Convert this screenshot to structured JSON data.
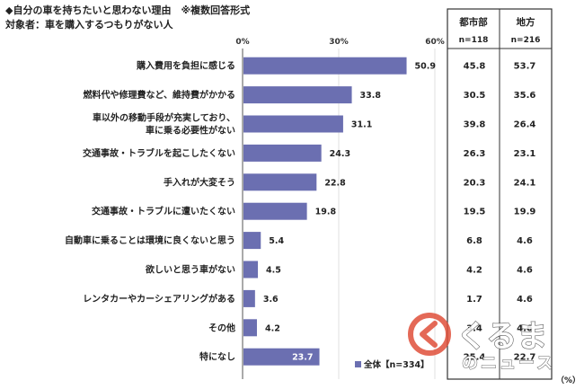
{
  "title": "◆自分の車を持ちたいと思わない理由　※複数回答形式",
  "subtitle": "対象者：車を購入するつもりがない人",
  "colors": {
    "bar": "#6b6fb1",
    "grid": "#d8d8d8",
    "border": "#333333"
  },
  "legend": {
    "label": "全体【n=334】"
  },
  "unit": "（%）",
  "columns": [
    {
      "name": "都市部",
      "n": "n=118"
    },
    {
      "name": "地方",
      "n": "n=216"
    }
  ],
  "watermark": {
    "logo": "くるまのニュース",
    "icon": "kuruma-logo-icon"
  },
  "chart_data": {
    "type": "bar",
    "orientation": "horizontal",
    "title": "◆自分の車を持ちたいと思わない理由　※複数回答形式",
    "subtitle": "対象者：車を購入するつもりがない人",
    "xlim": [
      0,
      60
    ],
    "ticks": [
      "0%",
      "30%",
      "60%"
    ],
    "categories": [
      "購入費用を負担に感じる",
      "燃料代や修理費など、維持費がかかる",
      "車以外の移動手段が充実しており、\n車に乗る必要性がない",
      "交通事故・トラブルを起こしたくない",
      "手入れが大変そう",
      "交通事故・トラブルに遭いたくない",
      "自動車に乗ることは環境に良くないと思う",
      "欲しいと思う車がない",
      "レンタカーやカーシェアリングがある",
      "その他",
      "特になし"
    ],
    "series": [
      {
        "name": "全体【n=334】",
        "values": [
          50.9,
          33.8,
          31.1,
          24.3,
          22.8,
          19.8,
          5.4,
          4.5,
          3.6,
          4.2,
          23.7
        ]
      }
    ],
    "table": {
      "都市部": [
        "45.8",
        "30.5",
        "39.8",
        "26.3",
        "20.3",
        "19.5",
        "6.8",
        "4.2",
        "1.7",
        "3.4",
        "25.4"
      ],
      "地方": [
        "53.7",
        "35.6",
        "26.4",
        "23.1",
        "24.1",
        "19.9",
        "4.6",
        "4.6",
        "4.6",
        "4.6",
        "22.7"
      ]
    },
    "grid": true,
    "legend_position": "bottom-right"
  }
}
